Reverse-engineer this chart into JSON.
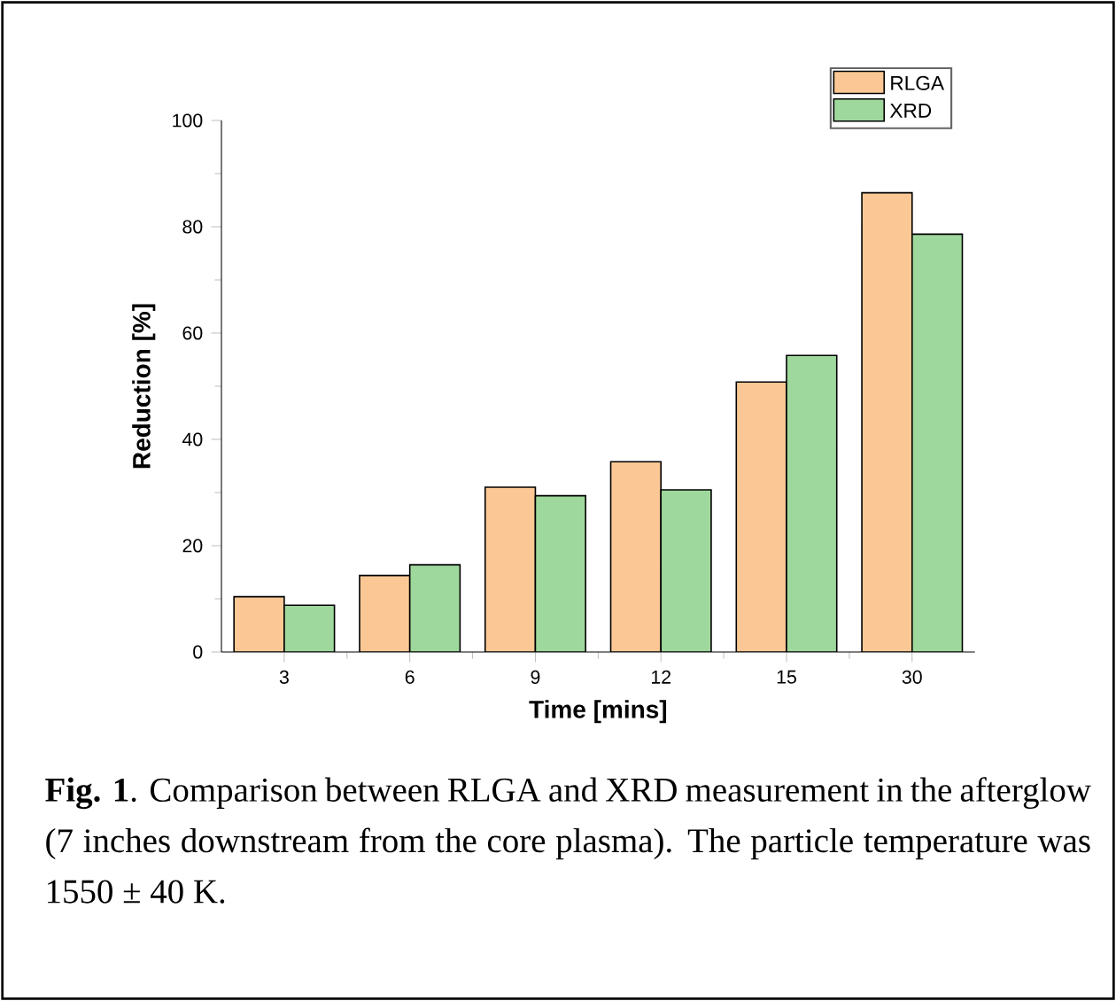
{
  "chart_data": {
    "type": "bar",
    "categories": [
      "3",
      "6",
      "9",
      "12",
      "15",
      "30"
    ],
    "series": [
      {
        "name": "RLGA",
        "color": "#fbc895",
        "values": [
          10.4,
          14.4,
          31.0,
          35.8,
          50.8,
          86.4
        ]
      },
      {
        "name": "XRD",
        "color": "#9fd89c",
        "values": [
          8.8,
          16.4,
          29.4,
          30.5,
          55.8,
          78.6
        ]
      }
    ],
    "xlabel": "Time [mins]",
    "ylabel": "Reduction [%]",
    "ylim": [
      0,
      100
    ],
    "yticks": [
      0,
      20,
      40,
      60,
      80,
      100
    ],
    "legend": "top right",
    "annotations": [
      "**Fig. 1**. Comparison between RLGA and XRD measurement in the afterglow (7 inches downstream from the core plasma). The particle temperature was 1550 ± 40 K."
    ]
  }
}
